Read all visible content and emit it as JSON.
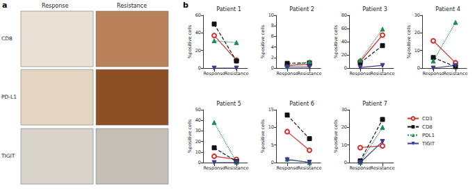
{
  "panel_labels": [
    "a",
    "b"
  ],
  "images": {
    "columns": [
      "Response",
      "Resistance"
    ],
    "rows": [
      "CD8",
      "PD-L1",
      "TIGIT"
    ]
  },
  "chart_data": [
    {
      "type": "line",
      "title": "Patient 1",
      "y_label": "%positive cells",
      "categories": [
        "Response",
        "Resistance"
      ],
      "ylim": [
        0,
        60
      ],
      "yticks": [
        0,
        20,
        40,
        60
      ],
      "grid": false,
      "series": [
        {
          "name": "CD3",
          "color": "#d0312d",
          "marker": "empty_circle",
          "line_style": "solid",
          "values": [
            37,
            9
          ]
        },
        {
          "name": "CD8",
          "color": "#111111",
          "marker": "square",
          "line_style": "dashed",
          "values": [
            50,
            8
          ]
        },
        {
          "name": "PDL1",
          "color": "#1e8a5a",
          "marker": "triangle",
          "line_style": "dotted",
          "values": [
            31,
            29
          ]
        },
        {
          "name": "TIGIT",
          "color": "#3b3b8f",
          "marker": "triangle_down",
          "line_style": "solid",
          "values": [
            0,
            0
          ]
        }
      ]
    },
    {
      "type": "line",
      "title": "Patient 2",
      "y_label": "%positive cells",
      "categories": [
        "Response",
        "Resistance"
      ],
      "ylim": [
        0,
        10
      ],
      "yticks": [
        0,
        2,
        4,
        6,
        8,
        10
      ],
      "grid": false,
      "series": [
        {
          "name": "CD3",
          "color": "#d0312d",
          "marker": "empty_circle",
          "line_style": "solid",
          "values": [
            0.5,
            0.7
          ]
        },
        {
          "name": "CD8",
          "color": "#111111",
          "marker": "square",
          "line_style": "dashed",
          "values": [
            0.9,
            1.0
          ]
        },
        {
          "name": "PDL1",
          "color": "#1e8a5a",
          "marker": "triangle",
          "line_style": "dotted",
          "values": [
            0.3,
            1.2
          ]
        },
        {
          "name": "TIGIT",
          "color": "#3b3b8f",
          "marker": "triangle_down",
          "line_style": "solid",
          "values": [
            0.2,
            0.2
          ]
        }
      ]
    },
    {
      "type": "line",
      "title": "Patient 3",
      "y_label": "%positive cells",
      "categories": [
        "Response",
        "Resistance"
      ],
      "ylim": [
        0,
        80
      ],
      "yticks": [
        0,
        20,
        40,
        60,
        80
      ],
      "grid": false,
      "series": [
        {
          "name": "CD3",
          "color": "#d0312d",
          "marker": "empty_circle",
          "line_style": "solid",
          "values": [
            10,
            50
          ]
        },
        {
          "name": "CD8",
          "color": "#111111",
          "marker": "square",
          "line_style": "dashed",
          "values": [
            8,
            34
          ]
        },
        {
          "name": "PDL1",
          "color": "#1e8a5a",
          "marker": "triangle",
          "line_style": "dotted",
          "values": [
            12,
            59
          ]
        },
        {
          "name": "TIGIT",
          "color": "#3b3b8f",
          "marker": "triangle_down",
          "line_style": "solid",
          "values": [
            1,
            4
          ]
        }
      ]
    },
    {
      "type": "line",
      "title": "Patient 4",
      "y_label": "%positive cells",
      "categories": [
        "Response",
        "Resistance"
      ],
      "ylim": [
        0,
        30
      ],
      "yticks": [
        0,
        10,
        20,
        30
      ],
      "grid": false,
      "series": [
        {
          "name": "CD3",
          "color": "#d0312d",
          "marker": "empty_circle",
          "line_style": "solid",
          "values": [
            15.5,
            3
          ]
        },
        {
          "name": "CD8",
          "color": "#111111",
          "marker": "square",
          "line_style": "dashed",
          "values": [
            6,
            0.8
          ]
        },
        {
          "name": "PDL1",
          "color": "#1e8a5a",
          "marker": "triangle",
          "line_style": "dotted",
          "values": [
            4,
            26
          ]
        },
        {
          "name": "TIGIT",
          "color": "#3b3b8f",
          "marker": "triangle_down",
          "line_style": "solid",
          "values": [
            0,
            1.5
          ]
        }
      ]
    },
    {
      "type": "line",
      "title": "Patient 5",
      "y_label": "%positive cells",
      "categories": [
        "Response",
        "Resistance"
      ],
      "ylim": [
        0,
        50
      ],
      "yticks": [
        0,
        10,
        20,
        30,
        40,
        50
      ],
      "grid": false,
      "series": [
        {
          "name": "CD3",
          "color": "#d0312d",
          "marker": "empty_circle",
          "line_style": "solid",
          "values": [
            6,
            3
          ]
        },
        {
          "name": "CD8",
          "color": "#111111",
          "marker": "square",
          "line_style": "dashed",
          "values": [
            14,
            1
          ]
        },
        {
          "name": "PDL1",
          "color": "#1e8a5a",
          "marker": "triangle",
          "line_style": "dotted",
          "values": [
            38,
            0.5
          ]
        },
        {
          "name": "TIGIT",
          "color": "#3b3b8f",
          "marker": "triangle_down",
          "line_style": "solid",
          "values": [
            0,
            0
          ]
        }
      ]
    },
    {
      "type": "line",
      "title": "Patient 6",
      "y_label": "%positive cells",
      "categories": [
        "Response",
        "Resistance"
      ],
      "ylim": [
        0,
        15
      ],
      "yticks": [
        0,
        5,
        10,
        15
      ],
      "grid": false,
      "series": [
        {
          "name": "CD3",
          "color": "#d0312d",
          "marker": "empty_circle",
          "line_style": "solid",
          "values": [
            8.8,
            3.5
          ]
        },
        {
          "name": "CD8",
          "color": "#111111",
          "marker": "square",
          "line_style": "dashed",
          "values": [
            13.5,
            6.8
          ]
        },
        {
          "name": "PDL1",
          "color": "#1e8a5a",
          "marker": "triangle",
          "line_style": "dotted",
          "values": [
            1,
            0
          ]
        },
        {
          "name": "TIGIT",
          "color": "#3b3b8f",
          "marker": "triangle_down",
          "line_style": "solid",
          "values": [
            0.8,
            0.1
          ]
        }
      ]
    },
    {
      "type": "line",
      "title": "Patient 7",
      "y_label": "%positive cells",
      "categories": [
        "Response",
        "Resistance"
      ],
      "ylim": [
        0,
        30
      ],
      "yticks": [
        0,
        10,
        20,
        30
      ],
      "grid": false,
      "legend": "right",
      "series": [
        {
          "name": "CD3",
          "color": "#d0312d",
          "marker": "empty_circle",
          "line_style": "solid",
          "values": [
            8.5,
            9.5
          ]
        },
        {
          "name": "CD8",
          "color": "#111111",
          "marker": "square",
          "line_style": "dashed",
          "values": [
            1,
            24.5
          ]
        },
        {
          "name": "PDL1",
          "color": "#1e8a5a",
          "marker": "triangle",
          "line_style": "dotted",
          "values": [
            0.2,
            20
          ]
        },
        {
          "name": "TIGIT",
          "color": "#3b3b8f",
          "marker": "triangle_down",
          "line_style": "solid",
          "values": [
            0,
            12
          ]
        }
      ]
    }
  ]
}
